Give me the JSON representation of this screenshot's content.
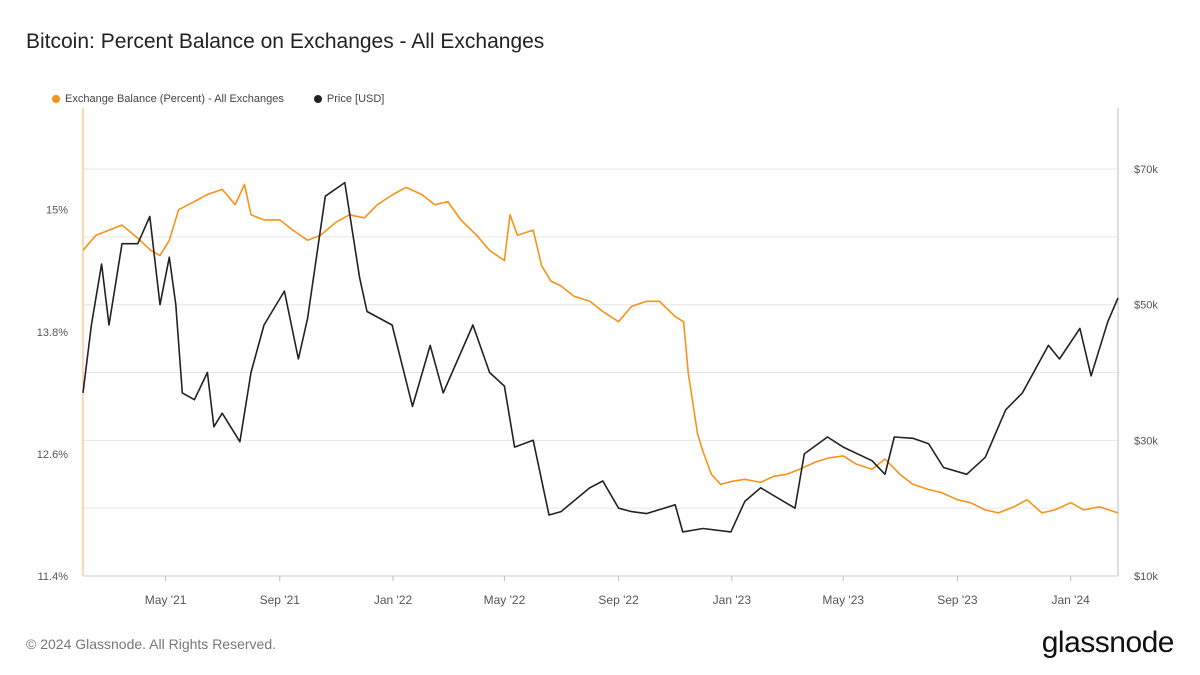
{
  "title": "Bitcoin: Percent Balance on Exchanges - All Exchanges",
  "footer": "© 2024 Glassnode. All Rights Reserved.",
  "logo": "glassnode",
  "colors": {
    "exchange_balance": "#f7931a",
    "price": "#222222",
    "grid": "#e6e6e6",
    "axis_text": "#555555"
  },
  "chart_data": {
    "type": "line",
    "title": "Bitcoin: Percent Balance on Exchanges - All Exchanges",
    "x_range": [
      "2021-02-01",
      "2024-02-21"
    ],
    "x_ticks": [
      {
        "date": "2021-05-01",
        "label": "May '21"
      },
      {
        "date": "2021-09-01",
        "label": "Sep '21"
      },
      {
        "date": "2022-01-01",
        "label": "Jan '22"
      },
      {
        "date": "2022-05-01",
        "label": "May '22"
      },
      {
        "date": "2022-09-01",
        "label": "Sep '22"
      },
      {
        "date": "2023-01-01",
        "label": "Jan '23"
      },
      {
        "date": "2023-05-01",
        "label": "May '23"
      },
      {
        "date": "2023-09-01",
        "label": "Sep '23"
      },
      {
        "date": "2024-01-01",
        "label": "Jan '24"
      }
    ],
    "y_left": {
      "label": "Exchange Balance (Percent)",
      "range": [
        11.4,
        16.0
      ],
      "ticks": [
        {
          "value": 15.0,
          "label": "15%"
        },
        {
          "value": 13.8,
          "label": "13.8%"
        },
        {
          "value": 12.6,
          "label": "12.6%"
        },
        {
          "value": 11.4,
          "label": "11.4%"
        }
      ]
    },
    "y_right": {
      "label": "Price [USD]",
      "range": [
        10000,
        79000
      ],
      "ticks": [
        {
          "value": 70000,
          "label": "$70k"
        },
        {
          "value": 50000,
          "label": "$50k"
        },
        {
          "value": 30000,
          "label": "$30k"
        },
        {
          "value": 10000,
          "label": "$10k"
        }
      ]
    },
    "gridlines": [
      70000,
      60000,
      50000,
      40000,
      30000,
      20000
    ],
    "series": [
      {
        "name": "Exchange Balance (Percent) - All Exchanges",
        "axis": "left",
        "color": "#f7931a",
        "points": [
          [
            "2021-02-01",
            14.6
          ],
          [
            "2021-02-15",
            14.75
          ],
          [
            "2021-03-01",
            14.8
          ],
          [
            "2021-03-15",
            14.85
          ],
          [
            "2021-04-01",
            14.72
          ],
          [
            "2021-04-15",
            14.6
          ],
          [
            "2021-04-25",
            14.55
          ],
          [
            "2021-05-05",
            14.7
          ],
          [
            "2021-05-15",
            15.0
          ],
          [
            "2021-06-01",
            15.08
          ],
          [
            "2021-06-15",
            15.15
          ],
          [
            "2021-07-01",
            15.2
          ],
          [
            "2021-07-15",
            15.05
          ],
          [
            "2021-07-25",
            15.25
          ],
          [
            "2021-08-01",
            14.95
          ],
          [
            "2021-08-15",
            14.9
          ],
          [
            "2021-09-01",
            14.9
          ],
          [
            "2021-09-15",
            14.8
          ],
          [
            "2021-10-01",
            14.7
          ],
          [
            "2021-10-15",
            14.75
          ],
          [
            "2021-11-01",
            14.88
          ],
          [
            "2021-11-15",
            14.95
          ],
          [
            "2021-12-01",
            14.92
          ],
          [
            "2021-12-15",
            15.05
          ],
          [
            "2022-01-01",
            15.15
          ],
          [
            "2022-01-15",
            15.22
          ],
          [
            "2022-02-01",
            15.15
          ],
          [
            "2022-02-15",
            15.05
          ],
          [
            "2022-03-01",
            15.08
          ],
          [
            "2022-03-15",
            14.9
          ],
          [
            "2022-04-01",
            14.75
          ],
          [
            "2022-04-15",
            14.6
          ],
          [
            "2022-05-01",
            14.5
          ],
          [
            "2022-05-07",
            14.95
          ],
          [
            "2022-05-15",
            14.75
          ],
          [
            "2022-06-01",
            14.8
          ],
          [
            "2022-06-10",
            14.45
          ],
          [
            "2022-06-20",
            14.3
          ],
          [
            "2022-07-01",
            14.25
          ],
          [
            "2022-07-15",
            14.15
          ],
          [
            "2022-08-01",
            14.1
          ],
          [
            "2022-08-15",
            14.0
          ],
          [
            "2022-09-01",
            13.9
          ],
          [
            "2022-09-15",
            14.05
          ],
          [
            "2022-10-01",
            14.1
          ],
          [
            "2022-10-15",
            14.1
          ],
          [
            "2022-11-01",
            13.95
          ],
          [
            "2022-11-10",
            13.9
          ],
          [
            "2022-11-15",
            13.4
          ],
          [
            "2022-11-25",
            12.8
          ],
          [
            "2022-12-01",
            12.62
          ],
          [
            "2022-12-10",
            12.4
          ],
          [
            "2022-12-20",
            12.3
          ],
          [
            "2023-01-01",
            12.33
          ],
          [
            "2023-01-15",
            12.35
          ],
          [
            "2023-02-01",
            12.32
          ],
          [
            "2023-02-15",
            12.38
          ],
          [
            "2023-03-01",
            12.4
          ],
          [
            "2023-03-15",
            12.45
          ],
          [
            "2023-04-01",
            12.52
          ],
          [
            "2023-04-15",
            12.56
          ],
          [
            "2023-05-01",
            12.58
          ],
          [
            "2023-05-15",
            12.5
          ],
          [
            "2023-06-01",
            12.45
          ],
          [
            "2023-06-15",
            12.55
          ],
          [
            "2023-07-01",
            12.4
          ],
          [
            "2023-07-15",
            12.3
          ],
          [
            "2023-08-01",
            12.25
          ],
          [
            "2023-08-15",
            12.22
          ],
          [
            "2023-09-01",
            12.15
          ],
          [
            "2023-09-15",
            12.12
          ],
          [
            "2023-10-01",
            12.05
          ],
          [
            "2023-10-15",
            12.02
          ],
          [
            "2023-11-01",
            12.08
          ],
          [
            "2023-11-15",
            12.15
          ],
          [
            "2023-12-01",
            12.02
          ],
          [
            "2023-12-15",
            12.05
          ],
          [
            "2024-01-01",
            12.12
          ],
          [
            "2024-01-15",
            12.05
          ],
          [
            "2024-02-01",
            12.08
          ],
          [
            "2024-02-21",
            12.02
          ]
        ]
      },
      {
        "name": "Price [USD]",
        "axis": "right",
        "color": "#222222",
        "points": [
          [
            "2021-02-01",
            37000
          ],
          [
            "2021-02-10",
            47000
          ],
          [
            "2021-02-21",
            56000
          ],
          [
            "2021-03-01",
            47000
          ],
          [
            "2021-03-15",
            59000
          ],
          [
            "2021-04-01",
            59000
          ],
          [
            "2021-04-14",
            63000
          ],
          [
            "2021-04-25",
            50000
          ],
          [
            "2021-05-05",
            57000
          ],
          [
            "2021-05-12",
            50000
          ],
          [
            "2021-05-19",
            37000
          ],
          [
            "2021-06-01",
            36000
          ],
          [
            "2021-06-15",
            40000
          ],
          [
            "2021-06-22",
            32000
          ],
          [
            "2021-07-01",
            34000
          ],
          [
            "2021-07-20",
            29800
          ],
          [
            "2021-08-01",
            40000
          ],
          [
            "2021-08-15",
            47000
          ],
          [
            "2021-09-06",
            52000
          ],
          [
            "2021-09-21",
            42000
          ],
          [
            "2021-10-01",
            48000
          ],
          [
            "2021-10-20",
            66000
          ],
          [
            "2021-11-10",
            68000
          ],
          [
            "2021-11-26",
            54000
          ],
          [
            "2021-12-04",
            49000
          ],
          [
            "2021-12-31",
            47000
          ],
          [
            "2022-01-22",
            35000
          ],
          [
            "2022-02-10",
            44000
          ],
          [
            "2022-02-24",
            37000
          ],
          [
            "2022-03-28",
            47000
          ],
          [
            "2022-04-15",
            40000
          ],
          [
            "2022-05-01",
            38000
          ],
          [
            "2022-05-12",
            29000
          ],
          [
            "2022-06-01",
            30000
          ],
          [
            "2022-06-18",
            19000
          ],
          [
            "2022-07-01",
            19500
          ],
          [
            "2022-08-01",
            23000
          ],
          [
            "2022-08-15",
            24000
          ],
          [
            "2022-09-01",
            20000
          ],
          [
            "2022-09-15",
            19500
          ],
          [
            "2022-10-01",
            19200
          ],
          [
            "2022-11-01",
            20500
          ],
          [
            "2022-11-09",
            16500
          ],
          [
            "2022-12-01",
            17000
          ],
          [
            "2022-12-31",
            16500
          ],
          [
            "2023-01-15",
            21000
          ],
          [
            "2023-02-01",
            23000
          ],
          [
            "2023-03-10",
            20000
          ],
          [
            "2023-03-20",
            28000
          ],
          [
            "2023-04-14",
            30500
          ],
          [
            "2023-05-01",
            29000
          ],
          [
            "2023-06-01",
            27000
          ],
          [
            "2023-06-15",
            25000
          ],
          [
            "2023-06-25",
            30500
          ],
          [
            "2023-07-15",
            30300
          ],
          [
            "2023-08-01",
            29500
          ],
          [
            "2023-08-17",
            26000
          ],
          [
            "2023-09-11",
            25000
          ],
          [
            "2023-10-01",
            27500
          ],
          [
            "2023-10-23",
            34500
          ],
          [
            "2023-11-10",
            37000
          ],
          [
            "2023-12-08",
            44000
          ],
          [
            "2023-12-20",
            42000
          ],
          [
            "2024-01-11",
            46500
          ],
          [
            "2024-01-23",
            39500
          ],
          [
            "2024-02-10",
            47500
          ],
          [
            "2024-02-21",
            51000
          ]
        ]
      }
    ],
    "legend": [
      "Exchange Balance (Percent) - All Exchanges",
      "Price [USD]"
    ],
    "legend_position": "top-left"
  }
}
